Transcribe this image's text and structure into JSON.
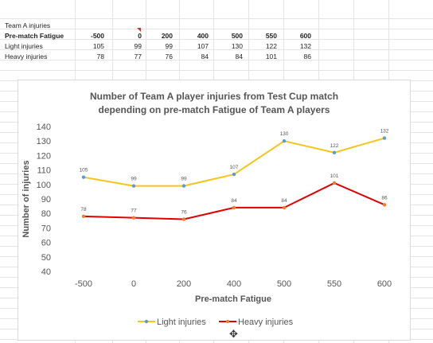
{
  "table": {
    "title": "Team A injuries",
    "header_label": "Pre-match Fatigue",
    "headers": [
      "-500",
      "0",
      "200",
      "400",
      "500",
      "550",
      "600"
    ],
    "rows": [
      {
        "label": "Light injuries",
        "values": [
          "105",
          "99",
          "99",
          "107",
          "130",
          "122",
          "132"
        ]
      },
      {
        "label": "Heavy injuries",
        "values": [
          "78",
          "77",
          "76",
          "84",
          "84",
          "101",
          "86"
        ]
      }
    ]
  },
  "chart_data": {
    "type": "line",
    "title_line1": "Number of Team A player injuries from Test Cup match",
    "title_line2": "depending on pre-match Fatigue of Team A players",
    "xlabel": "Pre-match Fatigue",
    "ylabel": "Number of injuries",
    "categories": [
      "-500",
      "0",
      "200",
      "400",
      "500",
      "550",
      "600"
    ],
    "ylim": [
      40,
      140
    ],
    "yticks": [
      40,
      50,
      60,
      70,
      80,
      90,
      100,
      110,
      120,
      130,
      140
    ],
    "grid": false,
    "legend_position": "bottom",
    "series": [
      {
        "name": "Light injuries",
        "values": [
          105,
          99,
          99,
          107,
          130,
          122,
          132
        ],
        "color": "#f5c518",
        "marker_color": "#5b9bd5"
      },
      {
        "name": "Heavy injuries",
        "values": [
          78,
          77,
          76,
          84,
          84,
          101,
          86
        ],
        "color": "#e00000",
        "marker_color": "#ed7d31"
      }
    ]
  }
}
